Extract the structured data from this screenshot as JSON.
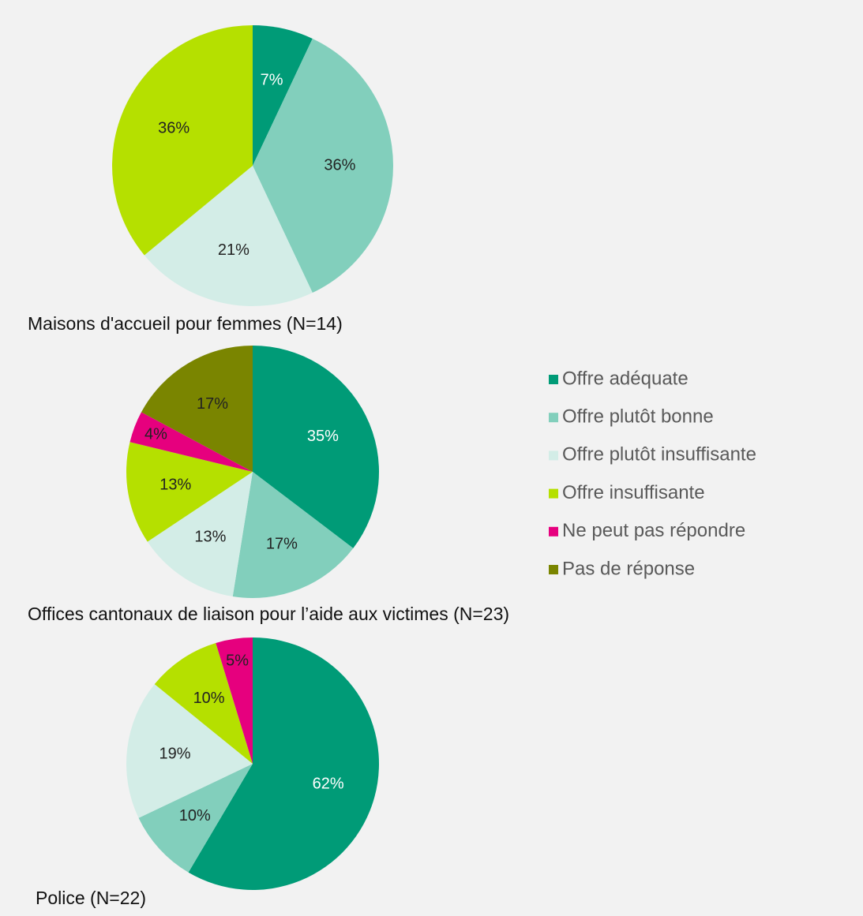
{
  "legend": {
    "labels": [
      "Offre adéquate",
      "Offre plutôt bonne",
      "Offre plutôt insuffisante",
      "Offre insuffisante",
      "Ne peut pas répondre",
      "Pas de réponse"
    ],
    "colors": [
      "#009b77",
      "#82cfbc",
      "#d3ede7",
      "#b5e000",
      "#e6007e",
      "#7a8500"
    ]
  },
  "chart_data": [
    {
      "type": "pie",
      "title": "Maisons d'accueil pour femmes (N=14)",
      "values": [
        7,
        36,
        21,
        36,
        null,
        null
      ],
      "value_labels": [
        "7%",
        "36%",
        "21%",
        "36%",
        null,
        null
      ]
    },
    {
      "type": "pie",
      "title": "Offices cantonaux de liaison pour l’aide aux victimes (N=23)",
      "values": [
        35,
        17,
        13,
        13,
        4,
        17
      ],
      "value_labels": [
        "35%",
        "17%",
        "13%",
        "13%",
        "4%",
        "17%"
      ]
    },
    {
      "type": "pie",
      "title": "Police (N=22)",
      "values": [
        62,
        10,
        19,
        10,
        5,
        null
      ],
      "value_labels": [
        "62%",
        "10%",
        "19%",
        "10%",
        "5%",
        null
      ]
    }
  ]
}
